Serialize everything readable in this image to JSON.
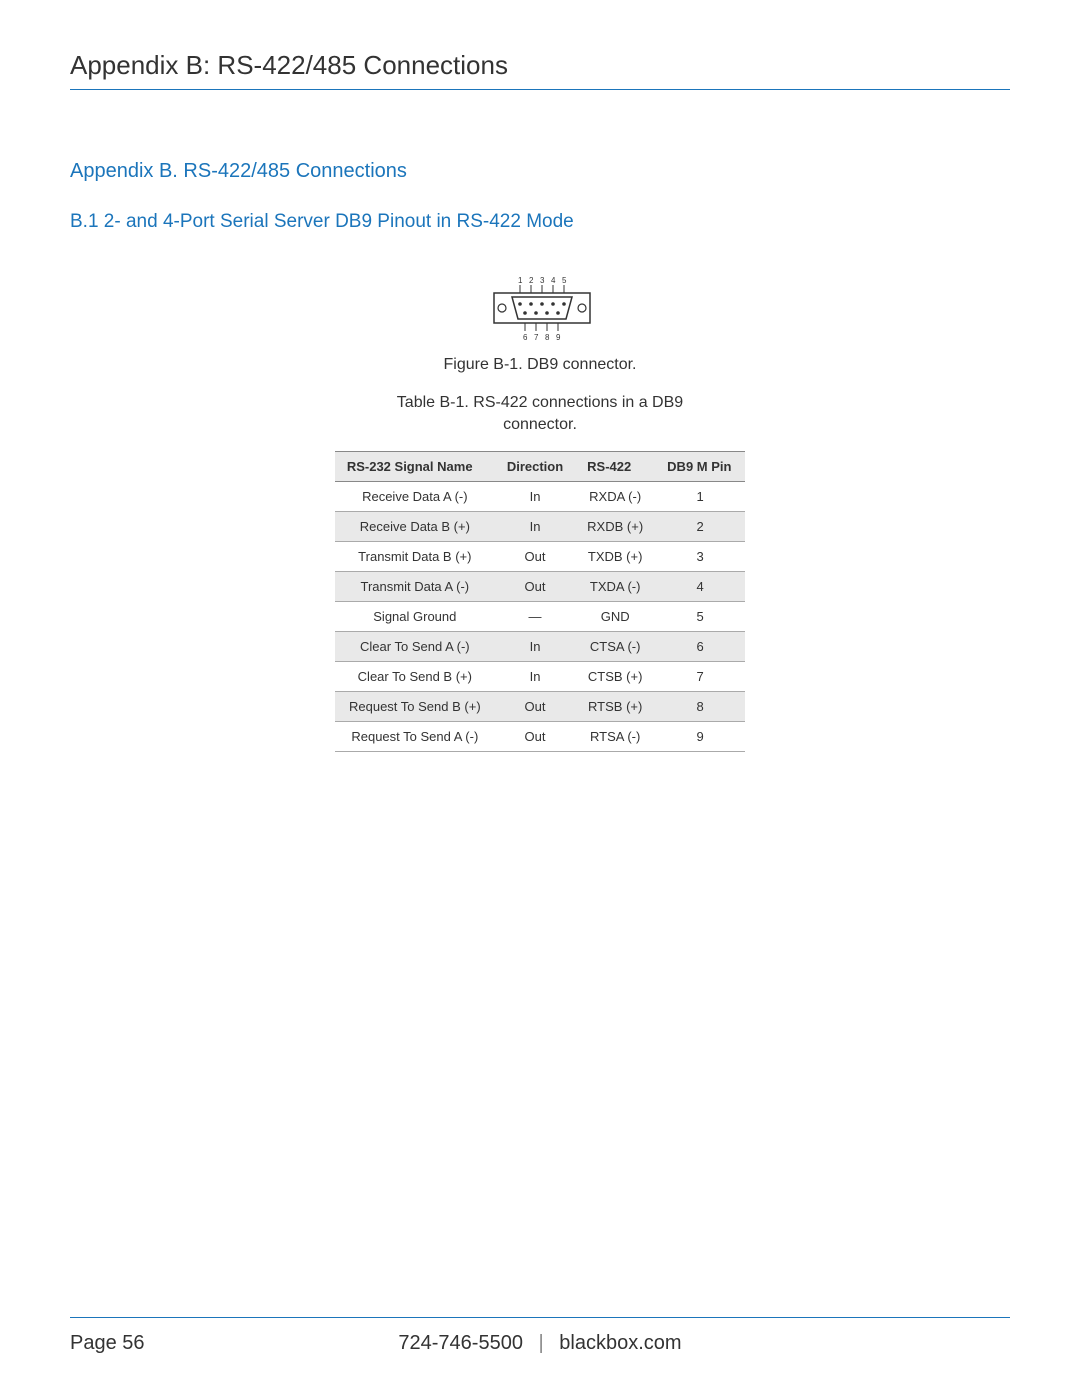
{
  "header": {
    "title": "Appendix B: RS-422/485 Connections"
  },
  "section": {
    "title": "Appendix B. RS-422/485 Connections",
    "subsection_title": "B.1 2- and 4-Port Serial Server DB9 Pinout in RS-422 Mode"
  },
  "figure": {
    "caption": "Figure B-1. DB9 connector.",
    "top_pins": [
      "1",
      "2",
      "3",
      "4",
      "5"
    ],
    "bottom_pins": [
      "6",
      "7",
      "8",
      "9"
    ],
    "stroke_color": "#333333",
    "fill_color": "#ffffff",
    "label_fontsize": 8
  },
  "table": {
    "caption": "Table B-1. RS-422 connections in a DB9 connector.",
    "columns": [
      "RS-232 Signal Name",
      "Direction",
      "RS-422",
      "DB9 M Pin"
    ],
    "rows": [
      [
        "Receive Data A (-)",
        "In",
        "RXDA (-)",
        "1"
      ],
      [
        "Receive Data B (+)",
        "In",
        "RXDB (+)",
        "2"
      ],
      [
        "Transmit Data B (+)",
        "Out",
        "TXDB (+)",
        "3"
      ],
      [
        "Transmit Data A (-)",
        "Out",
        "TXDA (-)",
        "4"
      ],
      [
        "Signal Ground",
        "—",
        "GND",
        "5"
      ],
      [
        "Clear To Send A (-)",
        "In",
        "CTSA (-)",
        "6"
      ],
      [
        "Clear To Send B (+)",
        "In",
        "CTSB (+)",
        "7"
      ],
      [
        "Request To Send B (+)",
        "Out",
        "RTSB (+)",
        "8"
      ],
      [
        "Request To Send A (-)",
        "Out",
        "RTSA (-)",
        "9"
      ]
    ],
    "header_bg": "#e9e9e9",
    "row_alt_bg": "#e9e9e9",
    "border_color": "#888888",
    "font_size": 13
  },
  "footer": {
    "page_label": "Page 56",
    "phone": "724-746-5500",
    "separator": "|",
    "site": "blackbox.com"
  },
  "colors": {
    "accent": "#1b75bb",
    "text": "#333333",
    "background": "#ffffff"
  }
}
